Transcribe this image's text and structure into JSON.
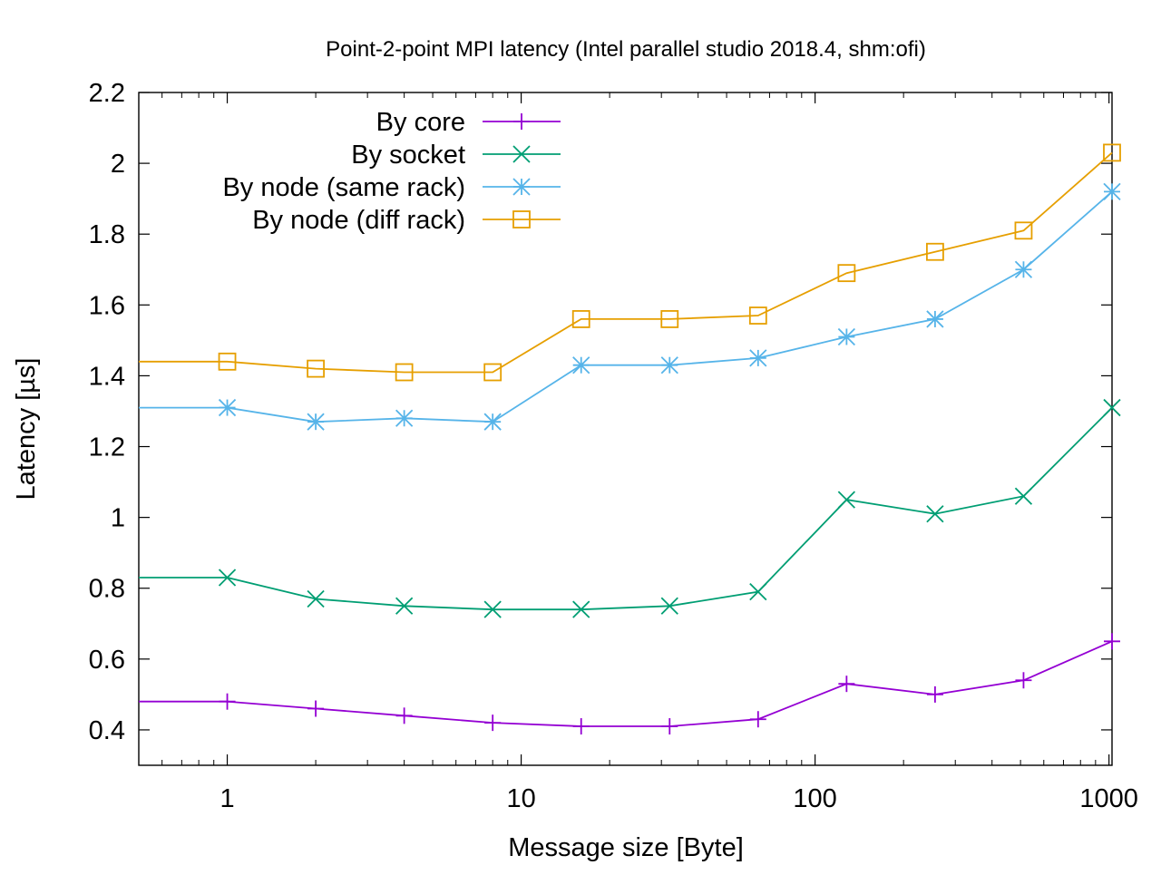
{
  "chart_data": {
    "type": "line",
    "title": "Point-2-point MPI latency (Intel parallel studio 2018.4, shm:ofi)",
    "xlabel": "Message size [Byte]",
    "ylabel": "Latency [µs]",
    "x_scale": "log",
    "xlim": [
      0.5,
      1024
    ],
    "ylim": [
      0.3,
      2.2
    ],
    "x_ticks": [
      {
        "value": 1,
        "label": "1"
      },
      {
        "value": 10,
        "label": "10"
      },
      {
        "value": 100,
        "label": "100"
      },
      {
        "value": 1000,
        "label": "1000"
      }
    ],
    "y_ticks": [
      {
        "value": 0.4,
        "label": "0.4"
      },
      {
        "value": 0.6,
        "label": "0.6"
      },
      {
        "value": 0.8,
        "label": "0.8"
      },
      {
        "value": 1.0,
        "label": "1"
      },
      {
        "value": 1.2,
        "label": "1.2"
      },
      {
        "value": 1.4,
        "label": "1.4"
      },
      {
        "value": 1.6,
        "label": "1.6"
      },
      {
        "value": 1.8,
        "label": "1.8"
      },
      {
        "value": 2.0,
        "label": "2"
      },
      {
        "value": 2.2,
        "label": "2.2"
      }
    ],
    "grid": false,
    "legend_position": "top-left",
    "x": [
      0.5,
      1,
      2,
      4,
      8,
      16,
      32,
      64,
      128,
      256,
      512,
      1024
    ],
    "series": [
      {
        "name": "By core",
        "color": "#9400d3",
        "marker": "plus",
        "values": [
          0.48,
          0.48,
          0.46,
          0.44,
          0.42,
          0.41,
          0.41,
          0.43,
          0.53,
          0.5,
          0.54,
          0.65
        ]
      },
      {
        "name": "By socket",
        "color": "#009e73",
        "marker": "cross",
        "values": [
          0.83,
          0.83,
          0.77,
          0.75,
          0.74,
          0.74,
          0.75,
          0.79,
          1.05,
          1.01,
          1.06,
          1.31
        ]
      },
      {
        "name": "By node (same rack)",
        "color": "#56b4e9",
        "marker": "star",
        "values": [
          1.31,
          1.31,
          1.27,
          1.28,
          1.27,
          1.43,
          1.43,
          1.45,
          1.51,
          1.56,
          1.7,
          1.92
        ]
      },
      {
        "name": "By node (diff rack)",
        "color": "#e69f00",
        "marker": "square",
        "values": [
          1.44,
          1.44,
          1.42,
          1.41,
          1.41,
          1.56,
          1.56,
          1.57,
          1.69,
          1.75,
          1.81,
          2.03
        ]
      }
    ]
  }
}
